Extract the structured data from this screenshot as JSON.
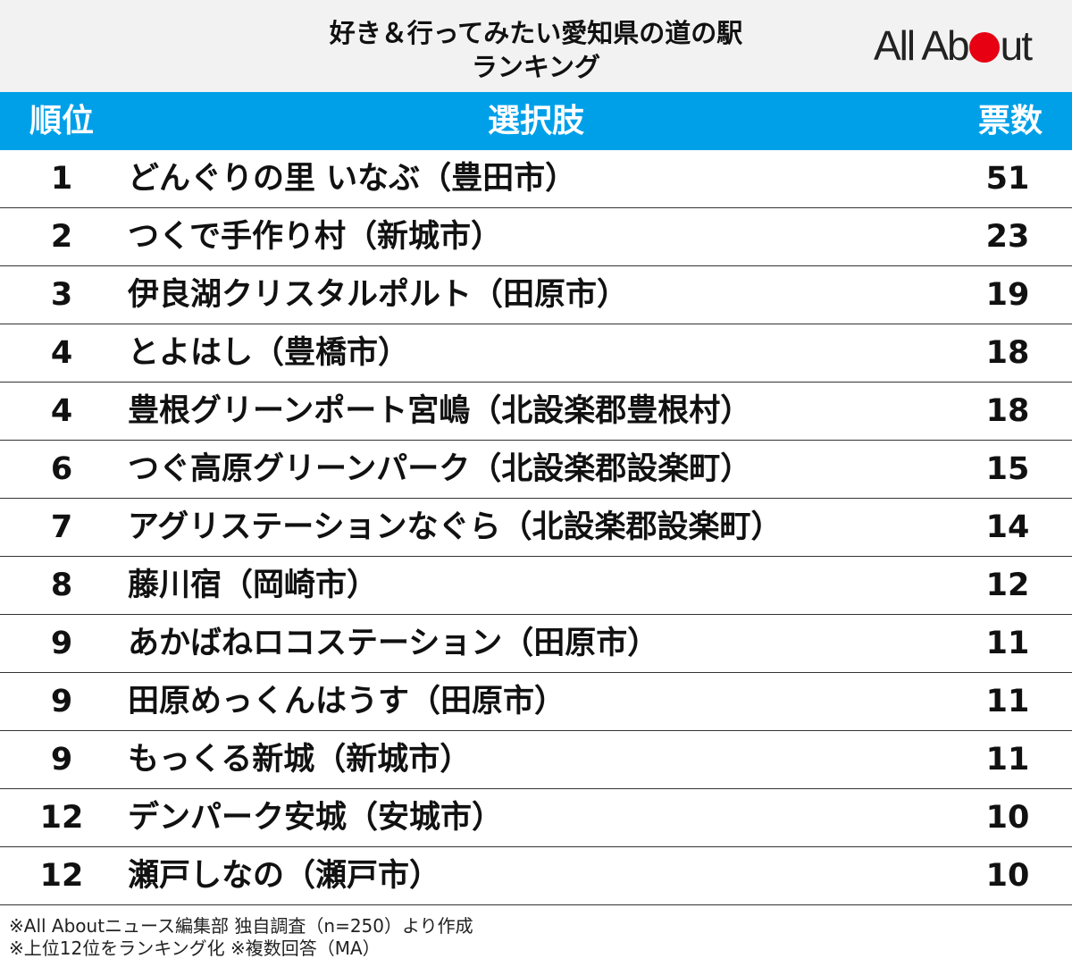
{
  "header": {
    "title_line1": "好き＆行ってみたい愛知県の道の駅",
    "title_line2": "ランキング",
    "logo_left": "All Ab",
    "logo_right": "ut",
    "logo_dot_color": "#e60012"
  },
  "colors": {
    "header_bg": "#f2f2f2",
    "table_header_bg": "#00a0e9",
    "table_header_text": "#ffffff"
  },
  "chart_data": {
    "type": "table",
    "title": "好き＆行ってみたい愛知県の道の駅 ランキング",
    "columns": [
      "順位",
      "選択肢",
      "票数"
    ],
    "rows": [
      {
        "rank": "1",
        "choice": "どんぐりの里 いなぶ（豊田市）",
        "votes": "51"
      },
      {
        "rank": "2",
        "choice": "つくで手作り村（新城市）",
        "votes": "23"
      },
      {
        "rank": "3",
        "choice": "伊良湖クリスタルポルト（田原市）",
        "votes": "19"
      },
      {
        "rank": "4",
        "choice": "とよはし（豊橋市）",
        "votes": "18"
      },
      {
        "rank": "4",
        "choice": "豊根グリーンポート宮嶋（北設楽郡豊根村）",
        "votes": "18"
      },
      {
        "rank": "6",
        "choice": "つぐ高原グリーンパーク（北設楽郡設楽町）",
        "votes": "15"
      },
      {
        "rank": "7",
        "choice": "アグリステーションなぐら（北設楽郡設楽町）",
        "votes": "14"
      },
      {
        "rank": "8",
        "choice": "藤川宿（岡崎市）",
        "votes": "12"
      },
      {
        "rank": "9",
        "choice": "あかばねロコステーション（田原市）",
        "votes": "11"
      },
      {
        "rank": "9",
        "choice": "田原めっくんはうす（田原市）",
        "votes": "11"
      },
      {
        "rank": "9",
        "choice": "もっくる新城（新城市）",
        "votes": "11"
      },
      {
        "rank": "12",
        "choice": "デンパーク安城（安城市）",
        "votes": "10"
      },
      {
        "rank": "12",
        "choice": "瀬戸しなの（瀬戸市）",
        "votes": "10"
      }
    ]
  },
  "notes": [
    "※All Aboutニュース編集部 独自調査（n=250）より作成",
    "※上位12位をランキング化 ※複数回答（MA）"
  ]
}
